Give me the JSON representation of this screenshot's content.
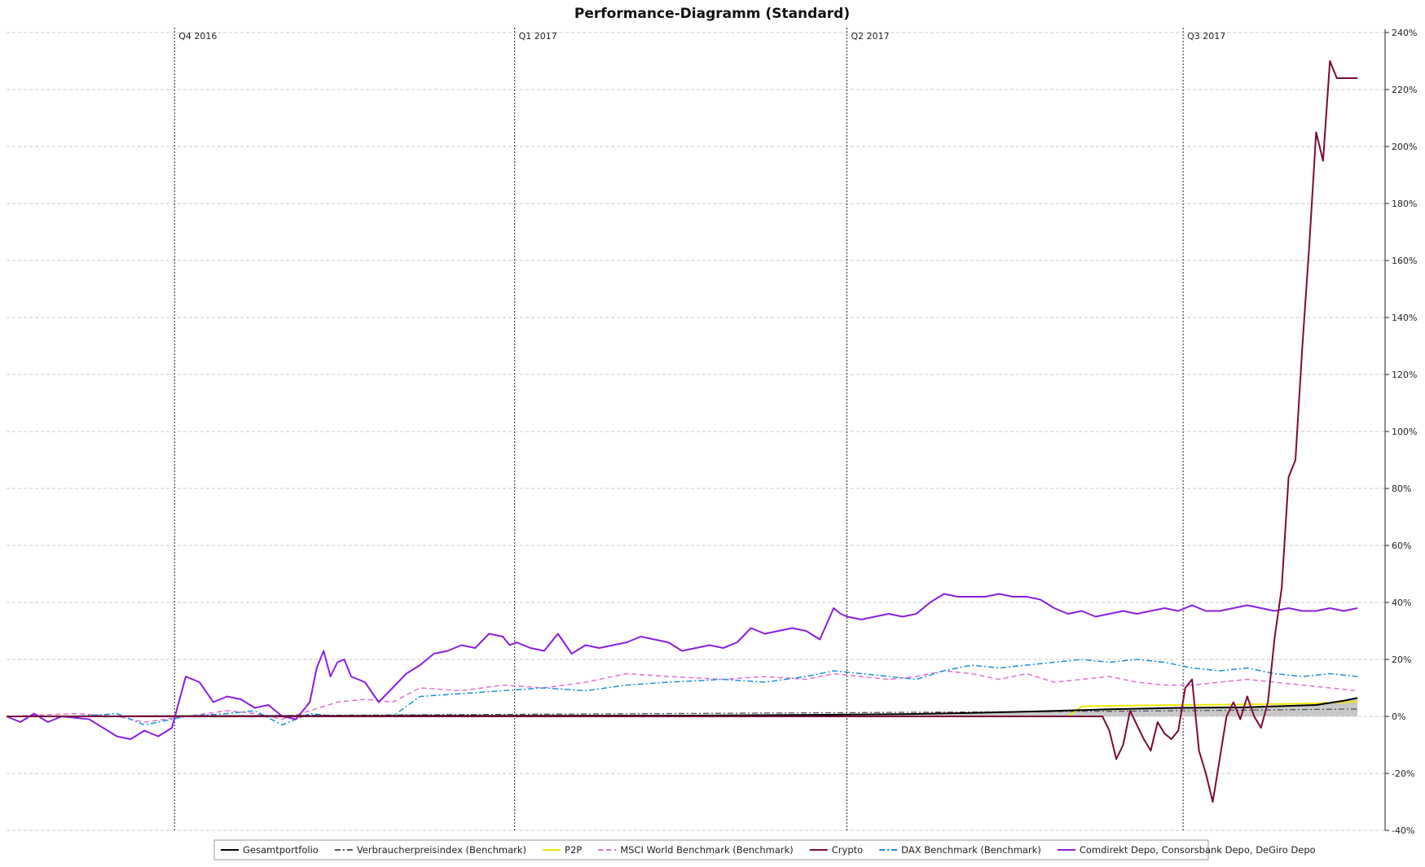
{
  "chart_data": {
    "type": "line",
    "title": "Performance-Diagramm (Standard)",
    "xlabel": "",
    "ylabel": "",
    "ylim": [
      -40,
      240
    ],
    "y_unit": "%",
    "y_ticks": [
      240,
      220,
      200,
      180,
      160,
      140,
      120,
      100,
      80,
      60,
      40,
      20,
      0,
      -20,
      -40
    ],
    "y_tick_labels": [
      "240%",
      "220%",
      "200%",
      "180%",
      "160%",
      "140%",
      "120%",
      "100%",
      "80%",
      "60%",
      "40%",
      "20%",
      "0%",
      "-20%",
      "-40%"
    ],
    "y_axis_position": "right",
    "grid": true,
    "legend_position": "bottom",
    "x_range": [
      0,
      1
    ],
    "quarter_markers": [
      {
        "label": "Q4 2016",
        "x": 0.1219
      },
      {
        "label": "Q1 2017",
        "x": 0.3686
      },
      {
        "label": "Q2 2017",
        "x": 0.6096
      },
      {
        "label": "Q3 2017",
        "x": 0.8535
      }
    ],
    "series": [
      {
        "name": "Gesamtportfolio",
        "color": "#000000",
        "style": "solid",
        "width": 2,
        "fill_gray": true,
        "x": [
          0,
          0.3,
          0.5,
          0.6,
          0.65,
          0.7,
          0.75,
          0.8,
          0.85,
          0.9,
          0.95,
          0.97,
          0.98
        ],
        "y": [
          0,
          0.2,
          0.3,
          0.6,
          0.8,
          1.2,
          1.8,
          2.5,
          3.0,
          3.2,
          4.0,
          5.5,
          6.5
        ]
      },
      {
        "name": "Verbraucherpreisindex (Benchmark)",
        "color": "#555555",
        "style": "dashdot",
        "width": 1.3,
        "fill_gray": false,
        "x": [
          0,
          0.2,
          0.4,
          0.6,
          0.8,
          0.9,
          0.98
        ],
        "y": [
          0,
          0.3,
          0.8,
          1.3,
          1.8,
          2.2,
          2.6
        ]
      },
      {
        "name": "P2P",
        "color": "#f0e600",
        "style": "solid",
        "width": 2,
        "fill_gray": false,
        "x": [
          0,
          0.77,
          0.78,
          0.8,
          0.85,
          0.9,
          0.93,
          0.95,
          0.97,
          0.98
        ],
        "y": [
          0,
          0,
          3.5,
          3.7,
          4.0,
          4.2,
          4.4,
          4.6,
          5.0,
          5.2
        ]
      },
      {
        "name": "MSCI World Benchmark (Benchmark)",
        "color": "#e070d0",
        "style": "dashed",
        "width": 1.5,
        "fill_gray": false,
        "x": [
          0,
          0.05,
          0.08,
          0.1,
          0.13,
          0.16,
          0.18,
          0.2,
          0.22,
          0.24,
          0.26,
          0.28,
          0.3,
          0.33,
          0.36,
          0.39,
          0.42,
          0.45,
          0.48,
          0.52,
          0.55,
          0.58,
          0.6,
          0.62,
          0.64,
          0.66,
          0.68,
          0.7,
          0.72,
          0.74,
          0.76,
          0.78,
          0.8,
          0.82,
          0.84,
          0.86,
          0.88,
          0.9,
          0.92,
          0.94,
          0.96,
          0.98
        ],
        "y": [
          0,
          1,
          0,
          -2,
          0,
          2,
          1,
          -1,
          2,
          5,
          6,
          5,
          10,
          9,
          11,
          10,
          12,
          15,
          14,
          13,
          14,
          13,
          15,
          14,
          13,
          14,
          16,
          15,
          13,
          15,
          12,
          13,
          14,
          12,
          11,
          11,
          12,
          13,
          12,
          11,
          10,
          9
        ]
      },
      {
        "name": "Crypto",
        "color": "#7a0a3a",
        "style": "solid",
        "width": 2,
        "fill_gray": false,
        "x": [
          0,
          0.795,
          0.8,
          0.805,
          0.81,
          0.815,
          0.82,
          0.825,
          0.83,
          0.835,
          0.84,
          0.845,
          0.85,
          0.855,
          0.86,
          0.865,
          0.87,
          0.875,
          0.88,
          0.885,
          0.89,
          0.895,
          0.9,
          0.905,
          0.91,
          0.915,
          0.92,
          0.925,
          0.93,
          0.935,
          0.94,
          0.945,
          0.95,
          0.955,
          0.96,
          0.965,
          0.97,
          0.975,
          0.98
        ],
        "y": [
          0,
          0,
          -5,
          -15,
          -10,
          2,
          -3,
          -8,
          -12,
          -2,
          -6,
          -8,
          -5,
          10,
          13,
          -12,
          -20,
          -30,
          -15,
          0,
          5,
          -1,
          7,
          0,
          -4,
          5,
          28,
          45,
          84,
          90,
          130,
          165,
          205,
          195,
          230,
          224,
          224,
          224,
          224
        ]
      },
      {
        "name": "DAX Benchmark (Benchmark)",
        "color": "#1a90d8",
        "style": "dashdot",
        "width": 1.5,
        "fill_gray": false,
        "x": [
          0,
          0.05,
          0.08,
          0.1,
          0.13,
          0.16,
          0.18,
          0.2,
          0.22,
          0.24,
          0.26,
          0.28,
          0.3,
          0.33,
          0.36,
          0.39,
          0.42,
          0.45,
          0.48,
          0.52,
          0.55,
          0.58,
          0.6,
          0.62,
          0.64,
          0.66,
          0.68,
          0.7,
          0.72,
          0.74,
          0.76,
          0.78,
          0.8,
          0.82,
          0.84,
          0.86,
          0.88,
          0.9,
          0.92,
          0.94,
          0.96,
          0.98
        ],
        "y": [
          0,
          0,
          1,
          -3,
          0,
          1,
          2,
          -3,
          1,
          0,
          0,
          0,
          7,
          8,
          9,
          10,
          9,
          11,
          12,
          13,
          12,
          14,
          16,
          15,
          14,
          13,
          16,
          18,
          17,
          18,
          19,
          20,
          19,
          20,
          19,
          17,
          16,
          17,
          15,
          14,
          15,
          14
        ]
      },
      {
        "name": "Comdirekt Depo, Consorsbank Depo, DeGiro Depo",
        "color": "#8a1ee0",
        "style": "solid",
        "width": 2,
        "fill_gray": false,
        "x": [
          0,
          0.01,
          0.02,
          0.03,
          0.04,
          0.06,
          0.08,
          0.09,
          0.1,
          0.11,
          0.12,
          0.13,
          0.14,
          0.15,
          0.16,
          0.17,
          0.18,
          0.19,
          0.2,
          0.21,
          0.22,
          0.225,
          0.23,
          0.235,
          0.24,
          0.245,
          0.25,
          0.26,
          0.27,
          0.28,
          0.29,
          0.3,
          0.31,
          0.32,
          0.33,
          0.34,
          0.35,
          0.36,
          0.365,
          0.37,
          0.38,
          0.39,
          0.4,
          0.41,
          0.42,
          0.43,
          0.44,
          0.45,
          0.46,
          0.47,
          0.48,
          0.49,
          0.5,
          0.51,
          0.52,
          0.53,
          0.54,
          0.55,
          0.56,
          0.57,
          0.58,
          0.59,
          0.6,
          0.605,
          0.61,
          0.62,
          0.63,
          0.64,
          0.65,
          0.66,
          0.67,
          0.68,
          0.69,
          0.7,
          0.71,
          0.72,
          0.73,
          0.74,
          0.75,
          0.76,
          0.77,
          0.78,
          0.79,
          0.8,
          0.81,
          0.82,
          0.83,
          0.84,
          0.85,
          0.86,
          0.87,
          0.88,
          0.89,
          0.9,
          0.91,
          0.92,
          0.93,
          0.94,
          0.95,
          0.96,
          0.97,
          0.98
        ],
        "y": [
          0,
          -2,
          1,
          -2,
          0,
          -1,
          -7,
          -8,
          -5,
          -7,
          -4,
          14,
          12,
          5,
          7,
          6,
          3,
          4,
          0,
          -1,
          5,
          17,
          23,
          14,
          19,
          20,
          14,
          12,
          5,
          10,
          15,
          18,
          22,
          23,
          25,
          24,
          29,
          28,
          25,
          26,
          24,
          23,
          29,
          22,
          25,
          24,
          25,
          26,
          28,
          27,
          26,
          23,
          24,
          25,
          24,
          26,
          31,
          29,
          30,
          31,
          30,
          27,
          38,
          36,
          35,
          34,
          35,
          36,
          35,
          36,
          40,
          43,
          42,
          42,
          42,
          43,
          42,
          42,
          41,
          38,
          36,
          37,
          35,
          36,
          37,
          36,
          37,
          38,
          37,
          39,
          37,
          37,
          38,
          39,
          38,
          37,
          38,
          37,
          37,
          38,
          37,
          38
        ]
      }
    ]
  }
}
